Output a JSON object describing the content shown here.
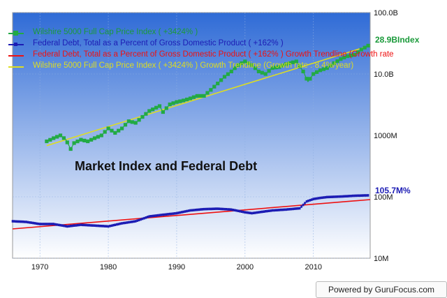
{
  "chart_data": {
    "type": "line",
    "title": "Market Index and Federal Debt",
    "y_scale": "log",
    "ylim": [
      10000000,
      100000000000
    ],
    "xlim": [
      1966,
      2018.3
    ],
    "x_ticks": [
      1970,
      1980,
      1990,
      2000,
      2010
    ],
    "y_ticks": [
      {
        "value": 100000000000,
        "label": "100.0B"
      },
      {
        "value": 10000000000,
        "label": "10.0B"
      },
      {
        "value": 1000000000,
        "label": "1000M"
      },
      {
        "value": 100000000,
        "label": "100M"
      },
      {
        "value": 10000000,
        "label": "10M"
      }
    ],
    "colors": {
      "wilshire": "#22aa44",
      "debt": "#1c1cb4",
      "debt_trend": "#ee1111",
      "wilshire_trend": "#dddd22",
      "plot_top": "#2f6bd6",
      "plot_bottom": "#ffffff"
    },
    "series": [
      {
        "name": "Wilshire 5000 Full Cap Price Index ( +3424% )",
        "key": "wilshire",
        "style": "line-square-markers",
        "x": [
          1971.0,
          1972.0,
          1973.0,
          1973.8,
          1974.5,
          1975.0,
          1976.0,
          1977.0,
          1978.0,
          1979.0,
          1980.0,
          1981.0,
          1982.0,
          1983.0,
          1984.0,
          1985.0,
          1986.0,
          1987.5,
          1988.0,
          1989.0,
          1990.0,
          1991.0,
          1992.0,
          1993.0,
          1994.0,
          1995.0,
          1996.0,
          1997.0,
          1998.0,
          1999.0,
          2000.0,
          2001.0,
          2002.0,
          2003.0,
          2004.0,
          2005.0,
          2006.0,
          2007.5,
          2008.5,
          2009.2,
          2010.0,
          2011.0,
          2012.0,
          2013.0,
          2014.0,
          2015.0,
          2016.0,
          2017.0,
          2018.0
        ],
        "values": [
          800000000,
          900000000,
          1000000000,
          850000000,
          600000000,
          750000000,
          850000000,
          800000000,
          900000000,
          1000000000,
          1300000000,
          1100000000,
          1300000000,
          1700000000,
          1600000000,
          2000000000,
          2500000000,
          3000000000,
          2400000000,
          3200000000,
          3500000000,
          3700000000,
          4000000000,
          4400000000,
          4400000000,
          5500000000,
          7000000000,
          9000000000,
          11000000000,
          14000000000,
          16000000000,
          14000000000,
          11000000000,
          10000000000,
          12500000000,
          13000000000,
          14500000000,
          16000000000,
          11000000000,
          7500000000,
          10000000000,
          11500000000,
          12500000000,
          15000000000,
          17500000000,
          19500000000,
          20500000000,
          25000000000,
          28900000000
        ]
      },
      {
        "name": "Federal Debt, Total as a Percent of Gross Domestic Product ( +162% )",
        "key": "debt",
        "style": "dense-markers",
        "x": [
          1966.0,
          1968.0,
          1970.0,
          1972.0,
          1974.0,
          1976.0,
          1978.0,
          1980.0,
          1982.0,
          1984.0,
          1986.0,
          1988.0,
          1990.0,
          1992.0,
          1994.0,
          1996.0,
          1998.0,
          2000.0,
          2001.0,
          2002.0,
          2004.0,
          2006.0,
          2008.0,
          2009.0,
          2010.0,
          2011.0,
          2012.0,
          2014.0,
          2016.0,
          2018.0
        ],
        "values": [
          40000000,
          39000000,
          36000000,
          36000000,
          33000000,
          35000000,
          34000000,
          33000000,
          37000000,
          40000000,
          48000000,
          51000000,
          54000000,
          60000000,
          63000000,
          64000000,
          62000000,
          56000000,
          54000000,
          56000000,
          60000000,
          62000000,
          65000000,
          84000000,
          92000000,
          96000000,
          99000000,
          101000000,
          104000000,
          105700000
        ]
      },
      {
        "name": "Federal Debt, Total as a Percent of Gross Domestic Product ( +162% ) Growth Trendline (Growth rate",
        "key": "debt_trend",
        "style": "line",
        "x": [
          1966,
          2018.3
        ],
        "values": [
          30000000,
          90000000
        ]
      },
      {
        "name": "Wilshire 5000 Full Cap Price Index ( +3424% ) Growth Trendline (Growth rate : 8.4%/year)",
        "key": "wilshire_trend",
        "style": "line",
        "x": [
          1971,
          2018.3
        ],
        "values": [
          680000000,
          29000000000
        ]
      }
    ],
    "end_labels": {
      "wilshire": "28.9BIndex",
      "debt": "105.7M%"
    },
    "footer": "Powered by GuruFocus.com"
  }
}
